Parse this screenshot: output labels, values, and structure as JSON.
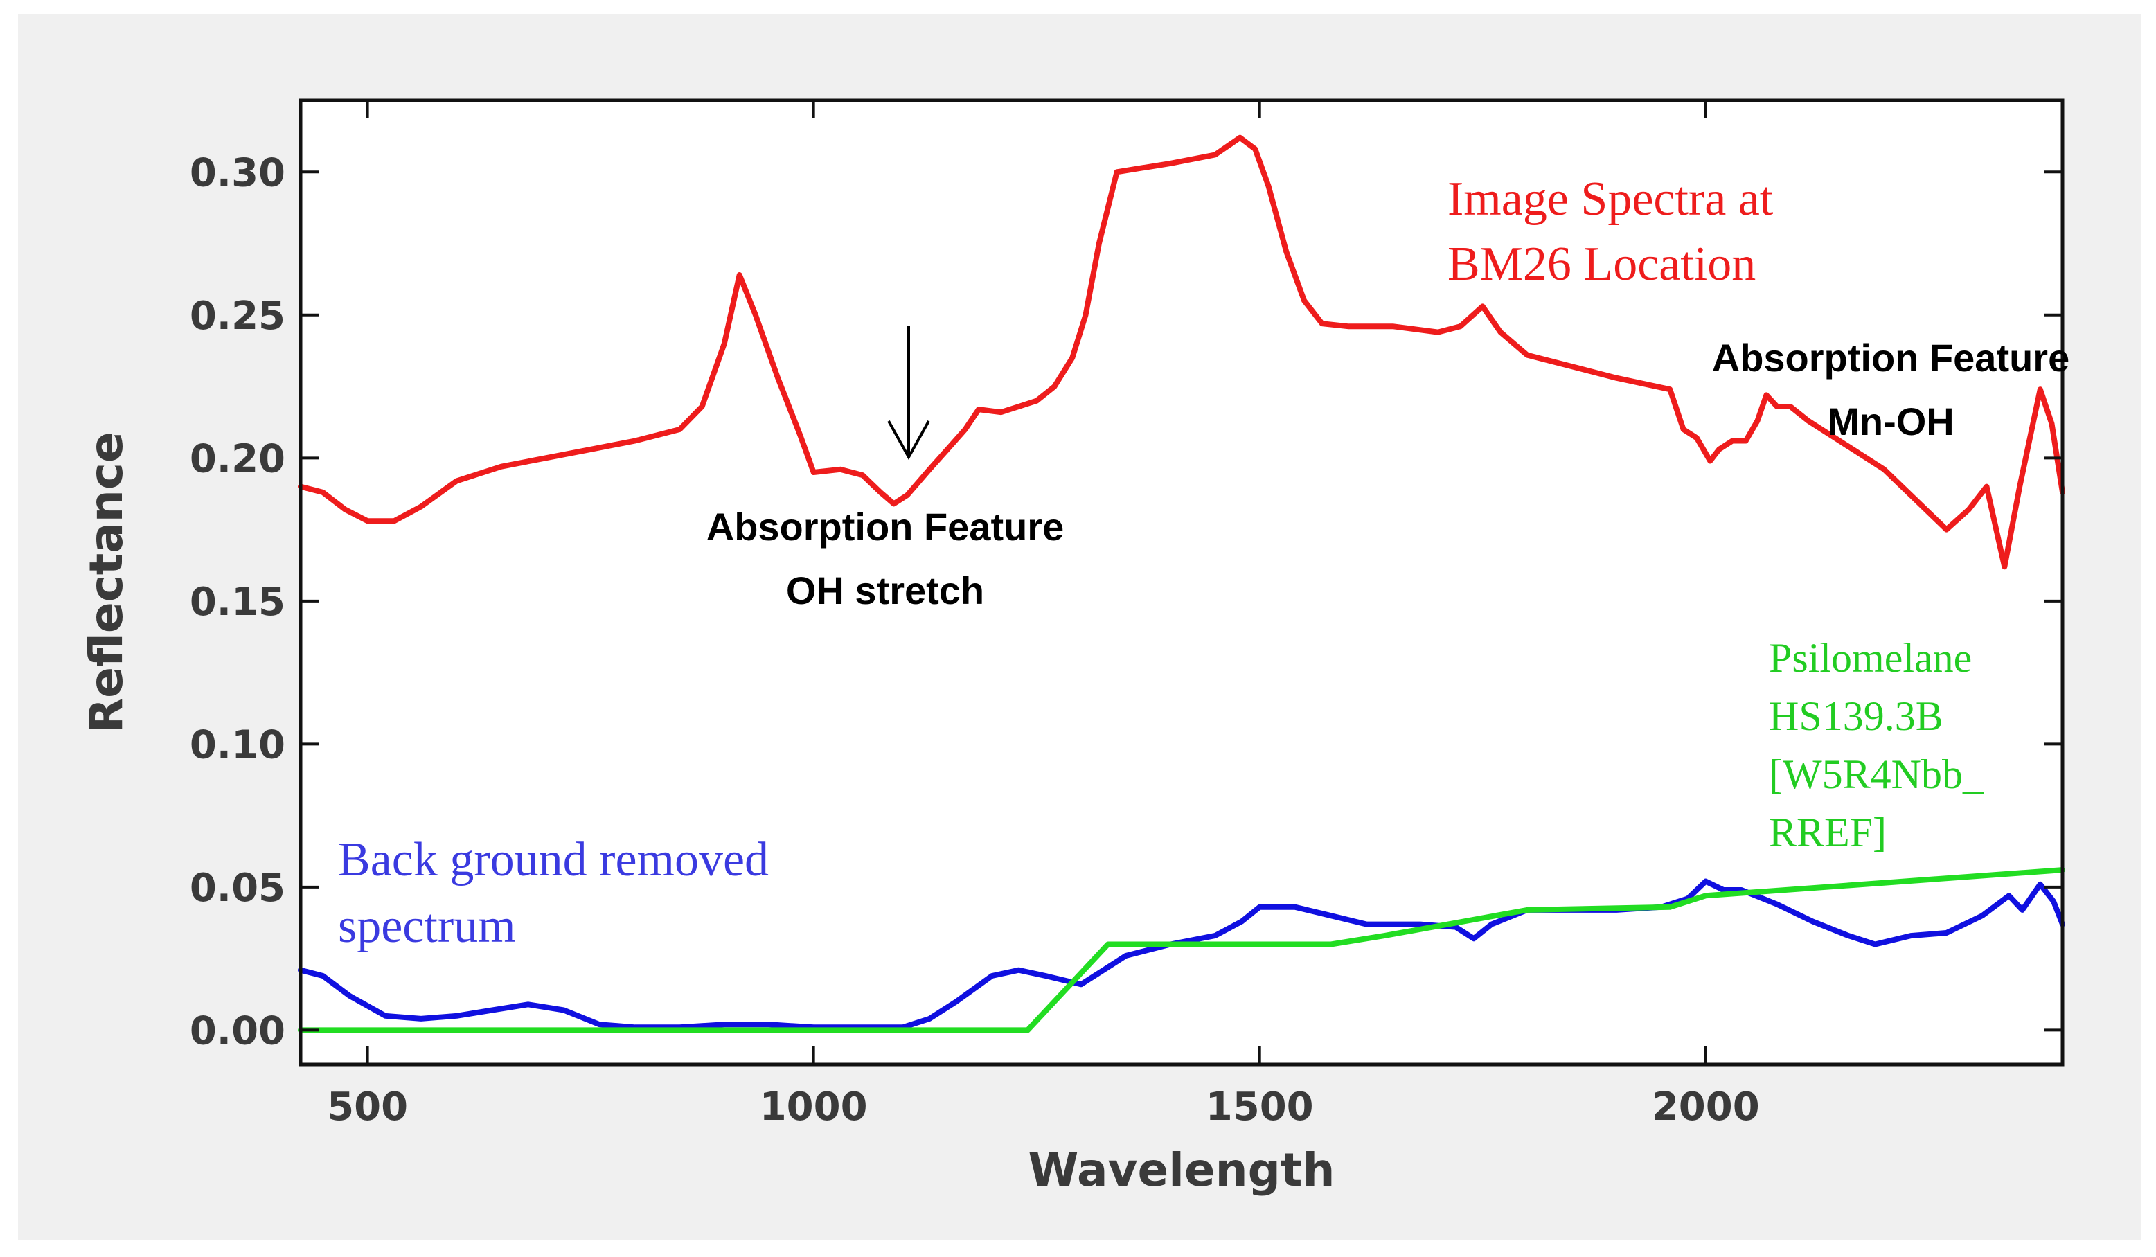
{
  "chart_data": {
    "type": "line",
    "title": "",
    "xlabel": "Wavelength",
    "ylabel": "Reflectance",
    "xlim": [
      425,
      2400
    ],
    "ylim": [
      -0.012,
      0.325
    ],
    "x_ticks": [
      500,
      1000,
      1500,
      2000
    ],
    "x_tick_labels": [
      "500",
      "1000",
      "1500",
      "2000"
    ],
    "y_ticks": [
      0.0,
      0.05,
      0.1,
      0.15,
      0.2,
      0.25,
      0.3
    ],
    "y_tick_labels": [
      "0.00",
      "0.05",
      "0.10",
      "0.15",
      "0.20",
      "0.25",
      "0.30"
    ],
    "grid": false,
    "series": [
      {
        "name": "Image Spectra at BM26 Location",
        "color": "#ee1c1c",
        "points": [
          [
            425,
            0.19
          ],
          [
            450,
            0.188
          ],
          [
            475,
            0.182
          ],
          [
            500,
            0.178
          ],
          [
            530,
            0.178
          ],
          [
            560,
            0.183
          ],
          [
            600,
            0.192
          ],
          [
            650,
            0.197
          ],
          [
            700,
            0.2
          ],
          [
            750,
            0.203
          ],
          [
            800,
            0.206
          ],
          [
            850,
            0.21
          ],
          [
            875,
            0.218
          ],
          [
            900,
            0.24
          ],
          [
            917,
            0.264
          ],
          [
            935,
            0.25
          ],
          [
            960,
            0.228
          ],
          [
            985,
            0.208
          ],
          [
            1000,
            0.195
          ],
          [
            1030,
            0.196
          ],
          [
            1055,
            0.194
          ],
          [
            1075,
            0.188
          ],
          [
            1090,
            0.184
          ],
          [
            1105,
            0.187
          ],
          [
            1130,
            0.196
          ],
          [
            1150,
            0.203
          ],
          [
            1170,
            0.21
          ],
          [
            1185,
            0.217
          ],
          [
            1210,
            0.216
          ],
          [
            1230,
            0.218
          ],
          [
            1250,
            0.22
          ],
          [
            1270,
            0.225
          ],
          [
            1290,
            0.235
          ],
          [
            1305,
            0.25
          ],
          [
            1320,
            0.275
          ],
          [
            1340,
            0.3
          ],
          [
            1400,
            0.303
          ],
          [
            1450,
            0.306
          ],
          [
            1478,
            0.312
          ],
          [
            1495,
            0.308
          ],
          [
            1510,
            0.295
          ],
          [
            1530,
            0.272
          ],
          [
            1550,
            0.255
          ],
          [
            1570,
            0.247
          ],
          [
            1600,
            0.246
          ],
          [
            1650,
            0.246
          ],
          [
            1700,
            0.244
          ],
          [
            1725,
            0.246
          ],
          [
            1750,
            0.253
          ],
          [
            1770,
            0.244
          ],
          [
            1800,
            0.236
          ],
          [
            1850,
            0.232
          ],
          [
            1900,
            0.228
          ],
          [
            1960,
            0.224
          ],
          [
            1975,
            0.21
          ],
          [
            1990,
            0.207
          ],
          [
            2005,
            0.199
          ],
          [
            2015,
            0.203
          ],
          [
            2030,
            0.206
          ],
          [
            2045,
            0.206
          ],
          [
            2058,
            0.213
          ],
          [
            2068,
            0.222
          ],
          [
            2080,
            0.218
          ],
          [
            2095,
            0.218
          ],
          [
            2115,
            0.213
          ],
          [
            2150,
            0.206
          ],
          [
            2200,
            0.196
          ],
          [
            2240,
            0.184
          ],
          [
            2270,
            0.175
          ],
          [
            2295,
            0.182
          ],
          [
            2315,
            0.19
          ],
          [
            2335,
            0.162
          ],
          [
            2352,
            0.19
          ],
          [
            2375,
            0.224
          ],
          [
            2388,
            0.212
          ],
          [
            2400,
            0.188
          ]
        ]
      },
      {
        "name": "Back ground removed spectrum",
        "color": "#1010e0",
        "points": [
          [
            425,
            0.021
          ],
          [
            450,
            0.019
          ],
          [
            480,
            0.012
          ],
          [
            520,
            0.005
          ],
          [
            560,
            0.004
          ],
          [
            600,
            0.005
          ],
          [
            640,
            0.007
          ],
          [
            680,
            0.009
          ],
          [
            720,
            0.007
          ],
          [
            760,
            0.002
          ],
          [
            800,
            0.001
          ],
          [
            850,
            0.001
          ],
          [
            900,
            0.002
          ],
          [
            950,
            0.002
          ],
          [
            1000,
            0.001
          ],
          [
            1050,
            0.001
          ],
          [
            1100,
            0.001
          ],
          [
            1130,
            0.004
          ],
          [
            1160,
            0.01
          ],
          [
            1200,
            0.019
          ],
          [
            1230,
            0.021
          ],
          [
            1260,
            0.019
          ],
          [
            1300,
            0.016
          ],
          [
            1320,
            0.02
          ],
          [
            1350,
            0.026
          ],
          [
            1400,
            0.03
          ],
          [
            1450,
            0.033
          ],
          [
            1480,
            0.038
          ],
          [
            1500,
            0.043
          ],
          [
            1540,
            0.043
          ],
          [
            1580,
            0.04
          ],
          [
            1620,
            0.037
          ],
          [
            1680,
            0.037
          ],
          [
            1720,
            0.036
          ],
          [
            1740,
            0.032
          ],
          [
            1760,
            0.037
          ],
          [
            1800,
            0.042
          ],
          [
            1850,
            0.042
          ],
          [
            1900,
            0.042
          ],
          [
            1950,
            0.043
          ],
          [
            1980,
            0.046
          ],
          [
            2000,
            0.052
          ],
          [
            2020,
            0.049
          ],
          [
            2040,
            0.049
          ],
          [
            2080,
            0.044
          ],
          [
            2120,
            0.038
          ],
          [
            2160,
            0.033
          ],
          [
            2190,
            0.03
          ],
          [
            2230,
            0.033
          ],
          [
            2270,
            0.034
          ],
          [
            2310,
            0.04
          ],
          [
            2340,
            0.047
          ],
          [
            2355,
            0.042
          ],
          [
            2375,
            0.051
          ],
          [
            2390,
            0.045
          ],
          [
            2400,
            0.037
          ]
        ]
      },
      {
        "name": "Psilomelane HS139.3B [W5R4Nbb_ RREF]",
        "color": "#22dd22",
        "points": [
          [
            425,
            0.0
          ],
          [
            1240,
            0.0
          ],
          [
            1330,
            0.03
          ],
          [
            1580,
            0.03
          ],
          [
            1640,
            0.033
          ],
          [
            1800,
            0.042
          ],
          [
            1960,
            0.043
          ],
          [
            2000,
            0.047
          ],
          [
            2400,
            0.056
          ]
        ]
      }
    ],
    "annotations": [
      {
        "lines": [
          "Image Spectra at",
          "BM26 Location"
        ],
        "color": "#ee1c1c"
      },
      {
        "lines": [
          "Back ground removed",
          "spectrum"
        ],
        "color": "#3a3ae0"
      },
      {
        "lines": [
          "Psilomelane",
          "HS139.3B",
          "[W5R4Nbb_",
          "RREF]"
        ],
        "color": "#22cc22"
      },
      {
        "lines": [
          "Absorption Feature",
          "OH stretch"
        ],
        "color": "#000000"
      },
      {
        "lines": [
          "Absorption Feature",
          "Mn-OH"
        ],
        "color": "#000000"
      }
    ]
  }
}
